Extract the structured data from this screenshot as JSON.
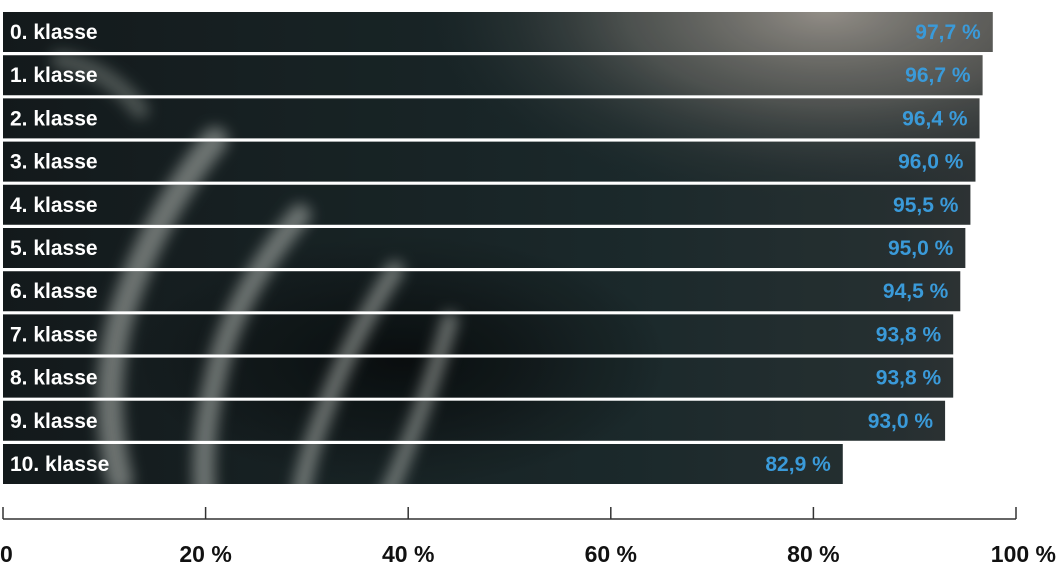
{
  "chart_data": {
    "type": "bar",
    "orientation": "horizontal",
    "categories": [
      "0. klasse",
      "1. klasse",
      "2. klasse",
      "3. klasse",
      "4. klasse",
      "5. klasse",
      "6. klasse",
      "7. klasse",
      "8. klasse",
      "9. klasse",
      "10. klasse"
    ],
    "values": [
      97.7,
      96.7,
      96.4,
      96.0,
      95.5,
      95.0,
      94.5,
      93.8,
      93.8,
      93.0,
      82.9
    ],
    "value_labels": [
      "97,7 %",
      "96,7 %",
      "96,4 %",
      "96,0 %",
      "95,5 %",
      "95,0 %",
      "94,5 %",
      "93,8 %",
      "93,8 %",
      "93,0 %",
      "82,9 %"
    ],
    "xlim": [
      0,
      100
    ],
    "x_ticks": [
      0,
      20,
      40,
      60,
      80,
      100
    ],
    "x_tick_labels": [
      "0",
      "20 %",
      "40 %",
      "60 %",
      "80 %",
      "100 %"
    ],
    "title": "",
    "xlabel": "",
    "ylabel": "",
    "grid": false,
    "legend": "none"
  },
  "colors": {
    "bar_dark": "#101a1c",
    "bar_mid": "#1d2c2e",
    "bar_highlight": "#a39d96",
    "value_text": "#3a9ad9",
    "label_text": "#ffffff",
    "axis": "#333333"
  }
}
